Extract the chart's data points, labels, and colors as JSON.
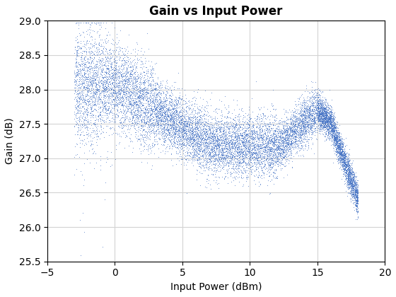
{
  "title": "Gain vs Input Power",
  "xlabel": "Input Power (dBm)",
  "ylabel": "Gain (dB)",
  "xlim": [
    -5,
    20
  ],
  "ylim": [
    25.5,
    29
  ],
  "xticks": [
    -5,
    0,
    5,
    10,
    15,
    20
  ],
  "yticks": [
    25.5,
    26,
    26.5,
    27,
    27.5,
    28,
    28.5,
    29
  ],
  "marker_color": "#4472C4",
  "marker_size": 1.2,
  "grid_color": "#D3D3D3",
  "title_fontsize": 12,
  "label_fontsize": 10,
  "tick_fontsize": 10,
  "n_points": 15000,
  "seed": 42,
  "figsize": [
    5.6,
    4.2
  ],
  "dpi": 100
}
